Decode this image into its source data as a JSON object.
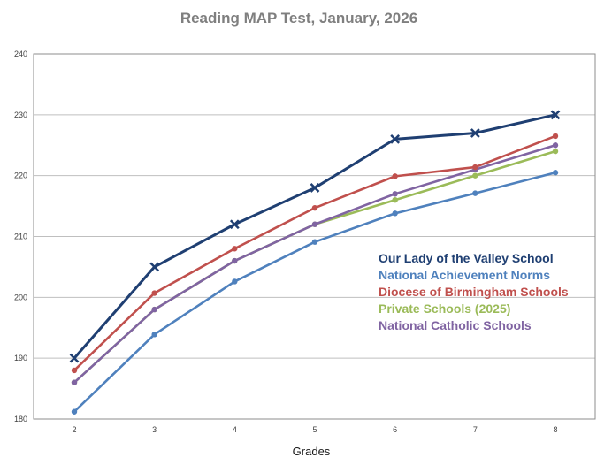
{
  "chart_data": {
    "type": "line",
    "title": "Reading MAP Test, January, 2026",
    "xlabel": "Grades",
    "ylabel": "",
    "categories": [
      "2",
      "3",
      "4",
      "5",
      "6",
      "7",
      "8"
    ],
    "ylim": [
      180,
      240
    ],
    "yticks": [
      180,
      190,
      200,
      210,
      220,
      230,
      240
    ],
    "grid": "horizontal",
    "legend_position": "right-middle",
    "series": [
      {
        "name": "Our Lady of the Valley School",
        "color": "#1f3f72",
        "marker": "x",
        "values": [
          190,
          205,
          212,
          218,
          226,
          227,
          230
        ]
      },
      {
        "name": "National Achievement Norms",
        "color": "#4f81bd",
        "marker": "circle",
        "values": [
          181.2,
          193.9,
          202.6,
          209.1,
          213.8,
          217.1,
          220.5
        ]
      },
      {
        "name": "Diocese of Birmingham Schools",
        "color": "#c0504d",
        "marker": "circle",
        "values": [
          188,
          200.7,
          208,
          214.7,
          219.9,
          221.4,
          226.5
        ]
      },
      {
        "name": "Private Schools (2025)",
        "color": "#9bbb59",
        "marker": "circle",
        "values": [
          186,
          198,
          206,
          212,
          216,
          220,
          224
        ]
      },
      {
        "name": "National Catholic Schools",
        "color": "#8064a2",
        "marker": "circle",
        "values": [
          186,
          198,
          206,
          212,
          217,
          221,
          225
        ]
      }
    ]
  }
}
